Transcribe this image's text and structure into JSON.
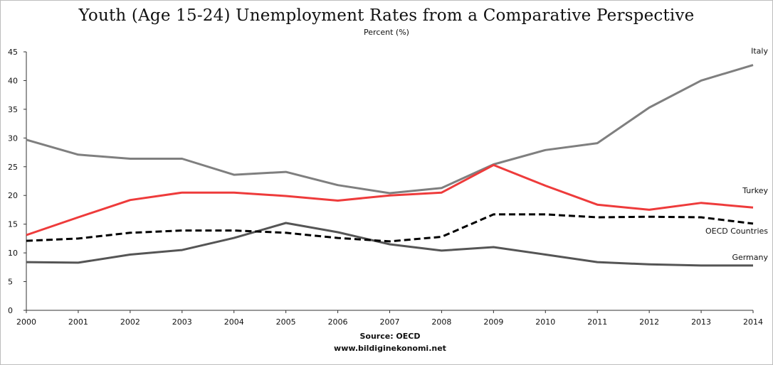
{
  "chart_data": {
    "type": "line",
    "title": "Youth (Age 15-24) Unemployment Rates from a Comparative Perspective",
    "subtitle": "Percent (%)",
    "x": [
      "2000",
      "2001",
      "2002",
      "2003",
      "2004",
      "2005",
      "2006",
      "2007",
      "2008",
      "2009",
      "2010",
      "2011",
      "2012",
      "2013",
      "2014"
    ],
    "ylim": [
      0,
      45
    ],
    "yticks": [
      0,
      5,
      10,
      15,
      20,
      25,
      30,
      35,
      40,
      45
    ],
    "grid": false,
    "legend": "inline labels at right end of lines",
    "series": [
      {
        "name": "Italy",
        "color": "#7f7f7f",
        "dash": "solid",
        "values": [
          29.7,
          27.1,
          26.4,
          26.4,
          23.6,
          24.1,
          21.8,
          20.4,
          21.3,
          25.4,
          27.9,
          29.1,
          35.3,
          40.0,
          42.7
        ]
      },
      {
        "name": "Turkey",
        "color": "#ee3b3b",
        "dash": "solid",
        "values": [
          13.1,
          16.2,
          19.2,
          20.5,
          20.5,
          19.9,
          19.1,
          20.0,
          20.5,
          25.3,
          21.7,
          18.4,
          17.5,
          18.7,
          17.9
        ]
      },
      {
        "name": "OECD Countries",
        "color": "#000000",
        "dash": "dashed",
        "values": [
          12.1,
          12.5,
          13.5,
          13.9,
          13.9,
          13.5,
          12.6,
          12.0,
          12.8,
          16.7,
          16.7,
          16.2,
          16.3,
          16.2,
          15.1
        ]
      },
      {
        "name": "Germany",
        "color": "#555555",
        "dash": "solid",
        "values": [
          8.4,
          8.3,
          9.7,
          10.5,
          12.6,
          15.2,
          13.6,
          11.5,
          10.4,
          11.0,
          9.7,
          8.4,
          8.0,
          7.8,
          7.8
        ]
      }
    ]
  },
  "footer": {
    "source": "Source: OECD",
    "website": "www.bildiginekonomi.net"
  }
}
